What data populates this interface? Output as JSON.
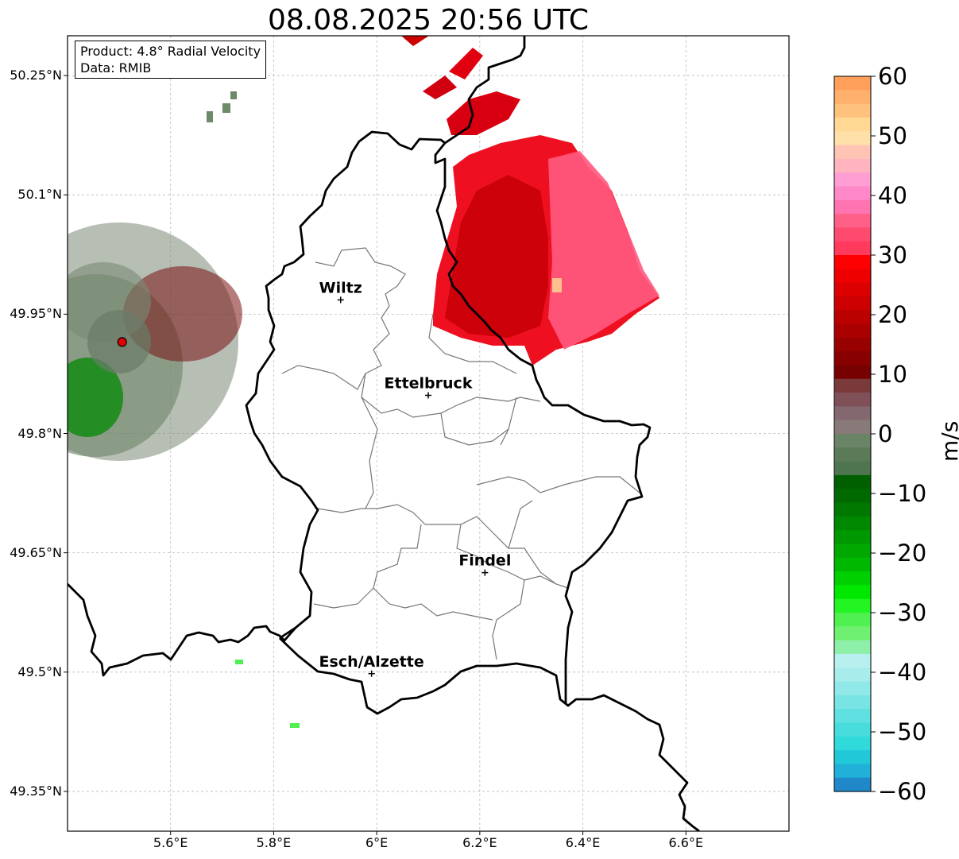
{
  "title": "08.08.2025 20:56 UTC",
  "info": {
    "product": "Product: 4.8° Radial Velocity",
    "data_source": "Data: RMIB"
  },
  "axes": {
    "lat_labels": [
      "50.25°N",
      "50.1°N",
      "49.95°N",
      "49.8°N",
      "49.65°N",
      "49.5°N",
      "49.35°N"
    ],
    "lon_labels": [
      "5.6°E",
      "5.8°E",
      "6°E",
      "6.2°E",
      "6.4°E",
      "6.6°E"
    ],
    "lat_values": [
      50.25,
      50.1,
      49.95,
      49.8,
      49.65,
      49.5,
      49.35
    ],
    "lon_values": [
      5.6,
      5.8,
      6.0,
      6.2,
      6.4,
      6.6
    ],
    "lon_range": [
      5.4,
      6.8
    ],
    "lat_range": [
      49.3,
      50.3
    ],
    "grid": true
  },
  "cities": [
    {
      "name": "Wiltz",
      "lon": 5.93,
      "lat": 49.968
    },
    {
      "name": "Ettelbruck",
      "lon": 6.1,
      "lat": 49.848
    },
    {
      "name": "Findel",
      "lon": 6.21,
      "lat": 49.625
    },
    {
      "name": "Esch/Alzette",
      "lon": 5.99,
      "lat": 49.498
    }
  ],
  "radar_site": {
    "lon": 5.506,
    "lat": 49.915,
    "color": "#e00000"
  },
  "colorbar": {
    "unit": "m/s",
    "min": -60,
    "max": 60,
    "tick_labels": [
      "60",
      "50",
      "40",
      "30",
      "20",
      "10",
      "0",
      "−10",
      "−20",
      "−30",
      "−40",
      "−50",
      "−60"
    ],
    "tick_values": [
      60,
      50,
      40,
      30,
      20,
      10,
      0,
      -10,
      -20,
      -30,
      -40,
      -50,
      -60
    ],
    "colors_top_to_bottom": [
      "#ff9f5a",
      "#ffb06c",
      "#ffc27e",
      "#ffd894",
      "#ffe0a8",
      "#ffc4b4",
      "#ffb4c0",
      "#ff9ed2",
      "#ff88c8",
      "#ff74b0",
      "#ff6088",
      "#ff4a70",
      "#ff3a5c",
      "#ff0000",
      "#ee0000",
      "#dd0000",
      "#cc0000",
      "#bb0000",
      "#aa0000",
      "#990000",
      "#880000",
      "#770000",
      "#7a3a3a",
      "#805058",
      "#846870",
      "#887a78",
      "#6a8468",
      "#5a7a58",
      "#4f7550",
      "#006000",
      "#006a00",
      "#007800",
      "#008800",
      "#009800",
      "#00a800",
      "#00b800",
      "#00d000",
      "#00e800",
      "#22f522",
      "#50f050",
      "#70f070",
      "#8ef0a8",
      "#b8f0f0",
      "#a8ecec",
      "#90e8e8",
      "#78e4e4",
      "#60e0e0",
      "#48dcdc",
      "#30dada",
      "#20c8d8",
      "#20b0d8",
      "#2088c8"
    ]
  }
}
